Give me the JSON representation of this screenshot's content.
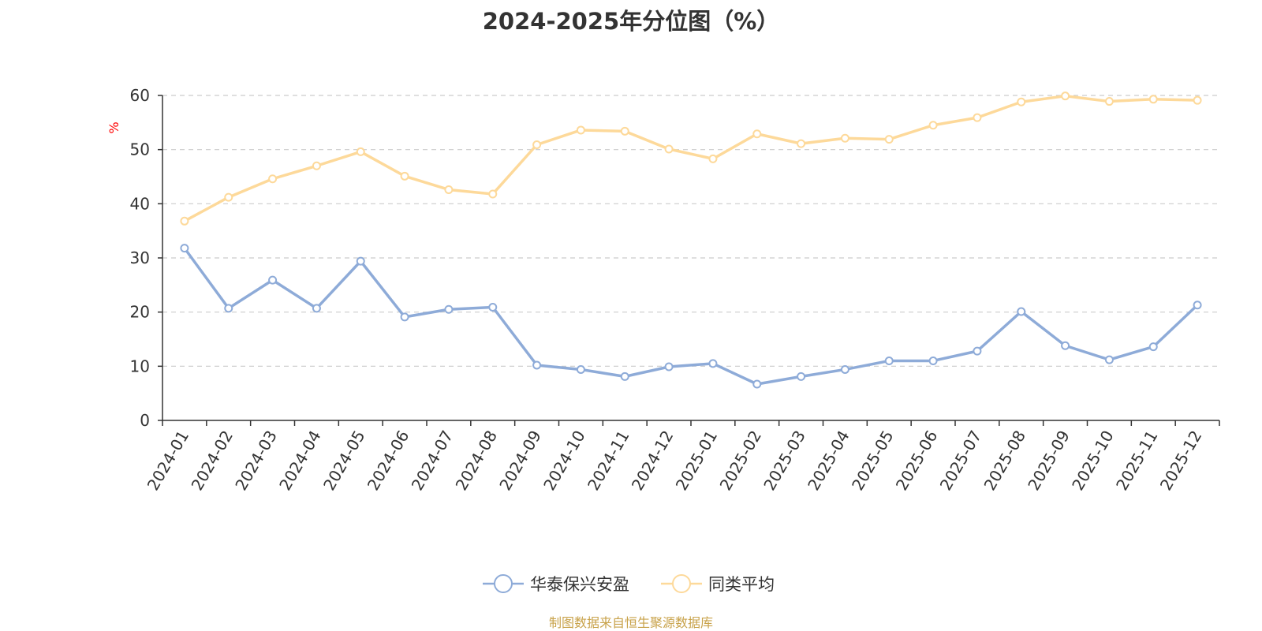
{
  "chart_data": {
    "type": "line",
    "title": "2024-2025年分位图（%）",
    "ylabel": "%",
    "xlabel": "",
    "ylim": [
      0,
      60
    ],
    "yticks": [
      0,
      10,
      20,
      30,
      40,
      50,
      60
    ],
    "grid": true,
    "legend_position": "bottom-center",
    "categories": [
      "2024-01",
      "2024-02",
      "2024-03",
      "2024-04",
      "2024-05",
      "2024-06",
      "2024-07",
      "2024-08",
      "2024-09",
      "2024-10",
      "2024-11",
      "2024-12",
      "2025-01",
      "2025-02",
      "2025-03",
      "2025-04",
      "2025-05",
      "2025-06",
      "2025-07",
      "2025-08",
      "2025-09",
      "2025-10",
      "2025-11",
      "2025-12"
    ],
    "series": [
      {
        "name": "华泰保兴安盈",
        "color": "#8eabd8",
        "values": [
          31.8,
          20.7,
          25.9,
          20.7,
          29.4,
          19.1,
          20.5,
          20.9,
          10.2,
          9.4,
          8.1,
          9.9,
          10.5,
          6.7,
          8.1,
          9.4,
          11.0,
          11.0,
          12.8,
          20.1,
          13.8,
          11.2,
          13.6,
          21.3
        ]
      },
      {
        "name": "同类平均",
        "color": "#fdd99a",
        "values": [
          36.8,
          41.2,
          44.6,
          47.0,
          49.6,
          45.1,
          42.6,
          41.8,
          50.9,
          53.6,
          53.4,
          50.1,
          48.3,
          52.9,
          51.1,
          52.1,
          51.9,
          54.5,
          55.9,
          58.8,
          59.9,
          58.9,
          59.3,
          59.1
        ]
      }
    ]
  },
  "source": "制图数据来自恒生聚源数据库",
  "colors": {
    "axis": "#333333",
    "grid": "#cccccc",
    "ylabel": "#ff0000",
    "source": "#c8a24a"
  }
}
